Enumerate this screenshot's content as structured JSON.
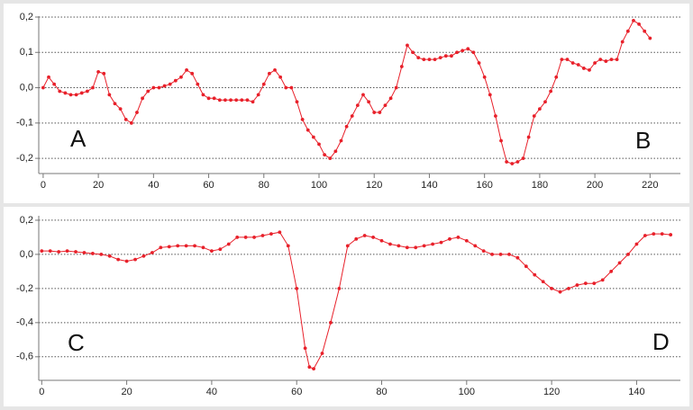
{
  "chart_data": [
    {
      "type": "line",
      "color": "#e8202a",
      "xlim": [
        -1.6,
        231
      ],
      "ylim": [
        -0.243,
        0.2025
      ],
      "xticks": [
        0,
        20,
        40,
        60,
        80,
        100,
        120,
        140,
        160,
        180,
        200,
        220
      ],
      "yticks": [
        {
          "value": 0.2,
          "label": "0,2"
        },
        {
          "value": 0.1,
          "label": "0,1"
        },
        {
          "value": 0,
          "label": "0,0"
        },
        {
          "value": -0.1,
          "label": "-0,1"
        },
        {
          "value": -0.2,
          "label": "-0,2"
        }
      ],
      "grid": true,
      "annotations": [
        "A",
        "B"
      ],
      "x": [
        0,
        2,
        4,
        6,
        8,
        10,
        12,
        14,
        16,
        18,
        20,
        22,
        24,
        26,
        28,
        30,
        32,
        34,
        36,
        38,
        40,
        42,
        44,
        46,
        48,
        50,
        52,
        54,
        56,
        58,
        60,
        62,
        64,
        66,
        68,
        70,
        72,
        74,
        76,
        78,
        80,
        82,
        84,
        86,
        88,
        90,
        92,
        94,
        96,
        98,
        100,
        102,
        104,
        106,
        108,
        110,
        112,
        114,
        116,
        118,
        120,
        122,
        124,
        126,
        128,
        130,
        132,
        134,
        136,
        138,
        140,
        142,
        144,
        146,
        148,
        150,
        152,
        154,
        156,
        158,
        160,
        162,
        164,
        166,
        168,
        170,
        172,
        174,
        176,
        178,
        180,
        182,
        184,
        186,
        188,
        190,
        192,
        194,
        196,
        198,
        200,
        202,
        204,
        206,
        208,
        210,
        212,
        214,
        216,
        218,
        220
      ],
      "values": [
        0,
        0.03,
        0.01,
        -0.01,
        -0.015,
        -0.02,
        -0.02,
        -0.015,
        -0.01,
        0,
        0.045,
        0.04,
        -0.02,
        -0.045,
        -0.06,
        -0.09,
        -0.1,
        -0.07,
        -0.03,
        -0.01,
        0,
        0,
        0.005,
        0.01,
        0.02,
        0.03,
        0.05,
        0.04,
        0.01,
        -0.02,
        -0.03,
        -0.03,
        -0.035,
        -0.035,
        -0.035,
        -0.035,
        -0.035,
        -0.035,
        -0.04,
        -0.02,
        0.01,
        0.04,
        0.05,
        0.03,
        0,
        0,
        -0.04,
        -0.09,
        -0.12,
        -0.14,
        -0.16,
        -0.19,
        -0.2,
        -0.18,
        -0.15,
        -0.11,
        -0.08,
        -0.05,
        -0.02,
        -0.04,
        -0.07,
        -0.07,
        -0.05,
        -0.03,
        0,
        0.06,
        0.12,
        0.1,
        0.085,
        0.08,
        0.08,
        0.08,
        0.085,
        0.09,
        0.09,
        0.1,
        0.105,
        0.11,
        0.1,
        0.07,
        0.03,
        -0.02,
        -0.08,
        -0.15,
        -0.21,
        -0.215,
        -0.21,
        -0.2,
        -0.14,
        -0.08,
        -0.06,
        -0.04,
        -0.01,
        0.03,
        0.08,
        0.08,
        0.07,
        0.065,
        0.055,
        0.05,
        0.07,
        0.08,
        0.075,
        0.08,
        0.08,
        0.13,
        0.16,
        0.19,
        0.18,
        0.16,
        0.14
      ]
    },
    {
      "type": "line",
      "color": "#e8202a",
      "xlim": [
        -0.7,
        150.3
      ],
      "ylim": [
        -0.738,
        0.226
      ],
      "xticks": [
        0,
        20,
        40,
        60,
        80,
        100,
        120,
        140
      ],
      "yticks": [
        {
          "value": 0.2,
          "label": "0,2"
        },
        {
          "value": 0,
          "label": "0,0"
        },
        {
          "value": -0.2,
          "label": "-0,2"
        },
        {
          "value": -0.4,
          "label": "-0,4"
        },
        {
          "value": -0.6,
          "label": "-0,6"
        }
      ],
      "grid": true,
      "annotations": [
        "C",
        "D"
      ],
      "x": [
        0,
        2,
        4,
        6,
        8,
        10,
        12,
        14,
        16,
        18,
        20,
        22,
        24,
        26,
        28,
        30,
        32,
        34,
        36,
        38,
        40,
        42,
        44,
        46,
        48,
        50,
        52,
        54,
        56,
        58,
        60,
        62,
        63,
        64,
        66,
        68,
        70,
        72,
        74,
        76,
        78,
        80,
        82,
        84,
        86,
        88,
        90,
        92,
        94,
        96,
        98,
        100,
        102,
        104,
        106,
        108,
        110,
        112,
        114,
        116,
        118,
        120,
        122,
        124,
        126,
        128,
        130,
        132,
        134,
        136,
        138,
        140,
        142,
        144,
        146,
        148
      ],
      "values": [
        0.02,
        0.02,
        0.015,
        0.02,
        0.015,
        0.01,
        0.005,
        0,
        -0.01,
        -0.03,
        -0.04,
        -0.03,
        -0.01,
        0.01,
        0.04,
        0.045,
        0.05,
        0.05,
        0.05,
        0.04,
        0.02,
        0.03,
        0.06,
        0.1,
        0.1,
        0.1,
        0.11,
        0.12,
        0.13,
        0.05,
        -0.2,
        -0.55,
        -0.66,
        -0.67,
        -0.58,
        -0.4,
        -0.2,
        0.05,
        0.09,
        0.11,
        0.1,
        0.08,
        0.06,
        0.05,
        0.04,
        0.04,
        0.05,
        0.06,
        0.07,
        0.09,
        0.1,
        0.08,
        0.05,
        0.02,
        0,
        0,
        0,
        -0.02,
        -0.07,
        -0.12,
        -0.16,
        -0.2,
        -0.22,
        -0.2,
        -0.18,
        -0.17,
        -0.17,
        -0.15,
        -0.1,
        -0.05,
        0,
        0.06,
        0.11,
        0.12,
        0.12,
        0.115
      ]
    }
  ]
}
